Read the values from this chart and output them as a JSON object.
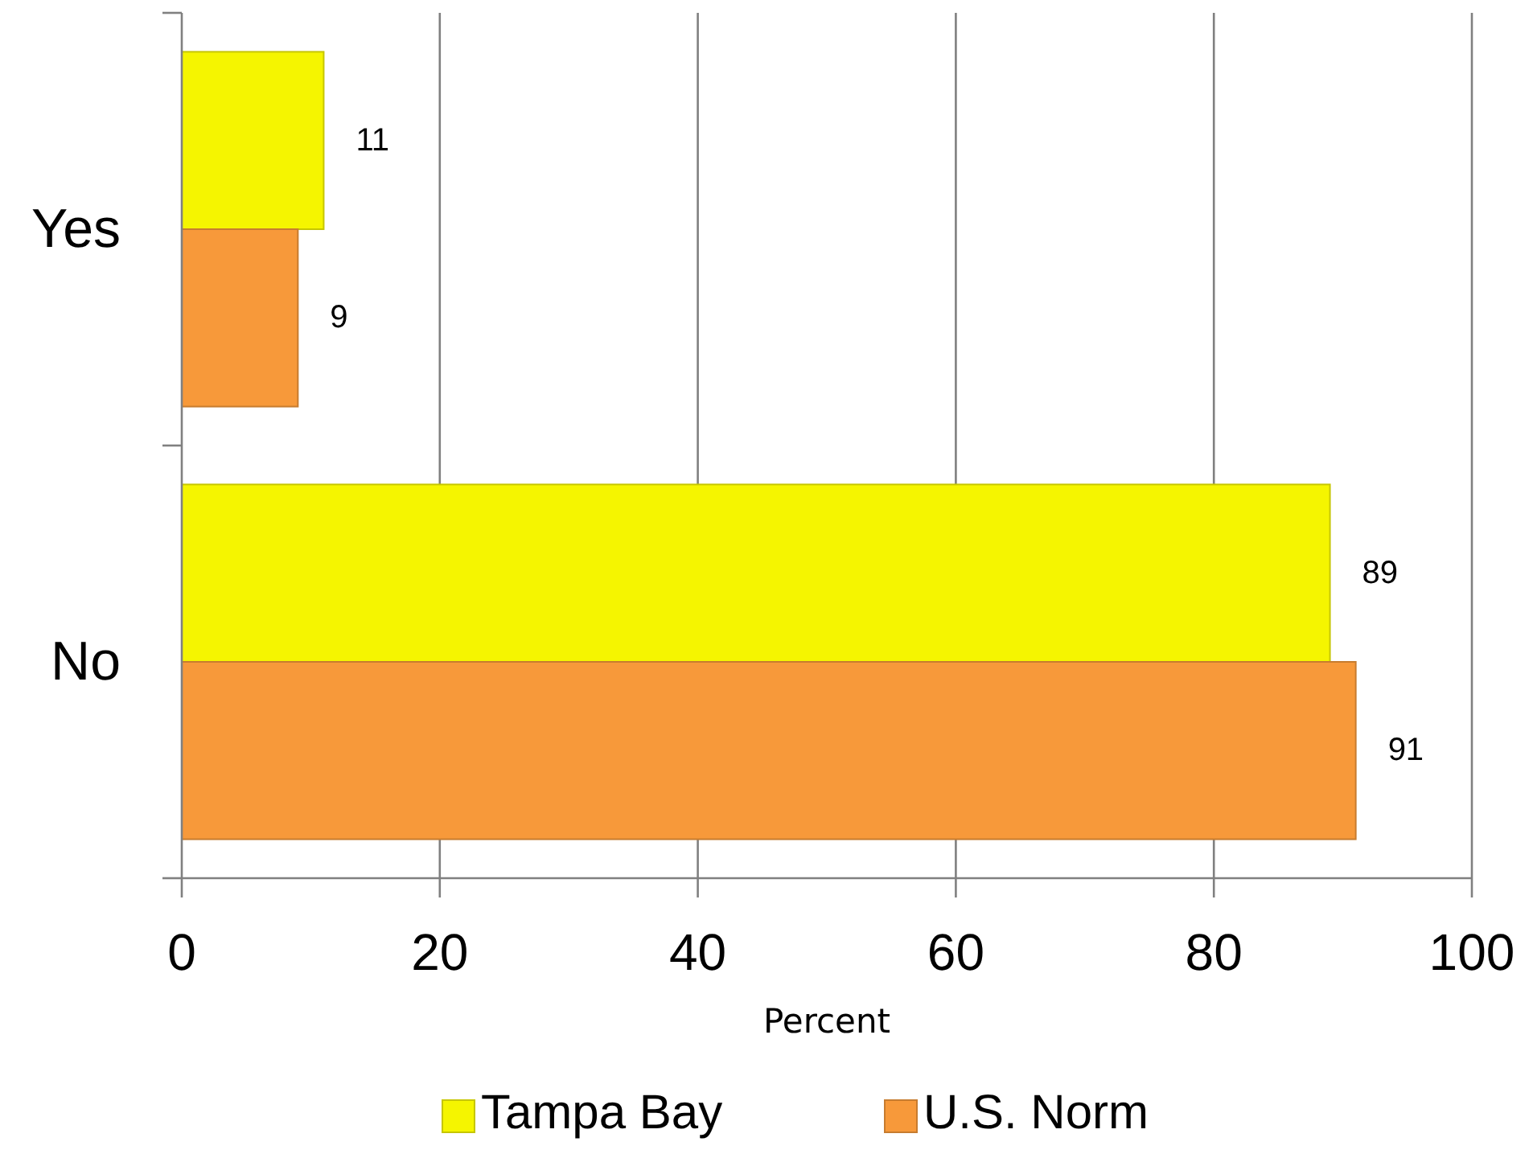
{
  "chart_data": {
    "type": "bar",
    "orientation": "horizontal",
    "categories": [
      "Yes",
      "No"
    ],
    "series": [
      {
        "name": "Tampa Bay",
        "color": "#f5f500",
        "values": [
          11,
          89
        ]
      },
      {
        "name": "U.S. Norm",
        "color": "#f7993a",
        "values": [
          9,
          91
        ]
      }
    ],
    "xlabel": "Percent",
    "xlim": [
      0,
      100
    ],
    "xticks": [
      0,
      20,
      40,
      60,
      80,
      100
    ],
    "grid": "x",
    "legend": "bottom",
    "data_labels": true
  }
}
